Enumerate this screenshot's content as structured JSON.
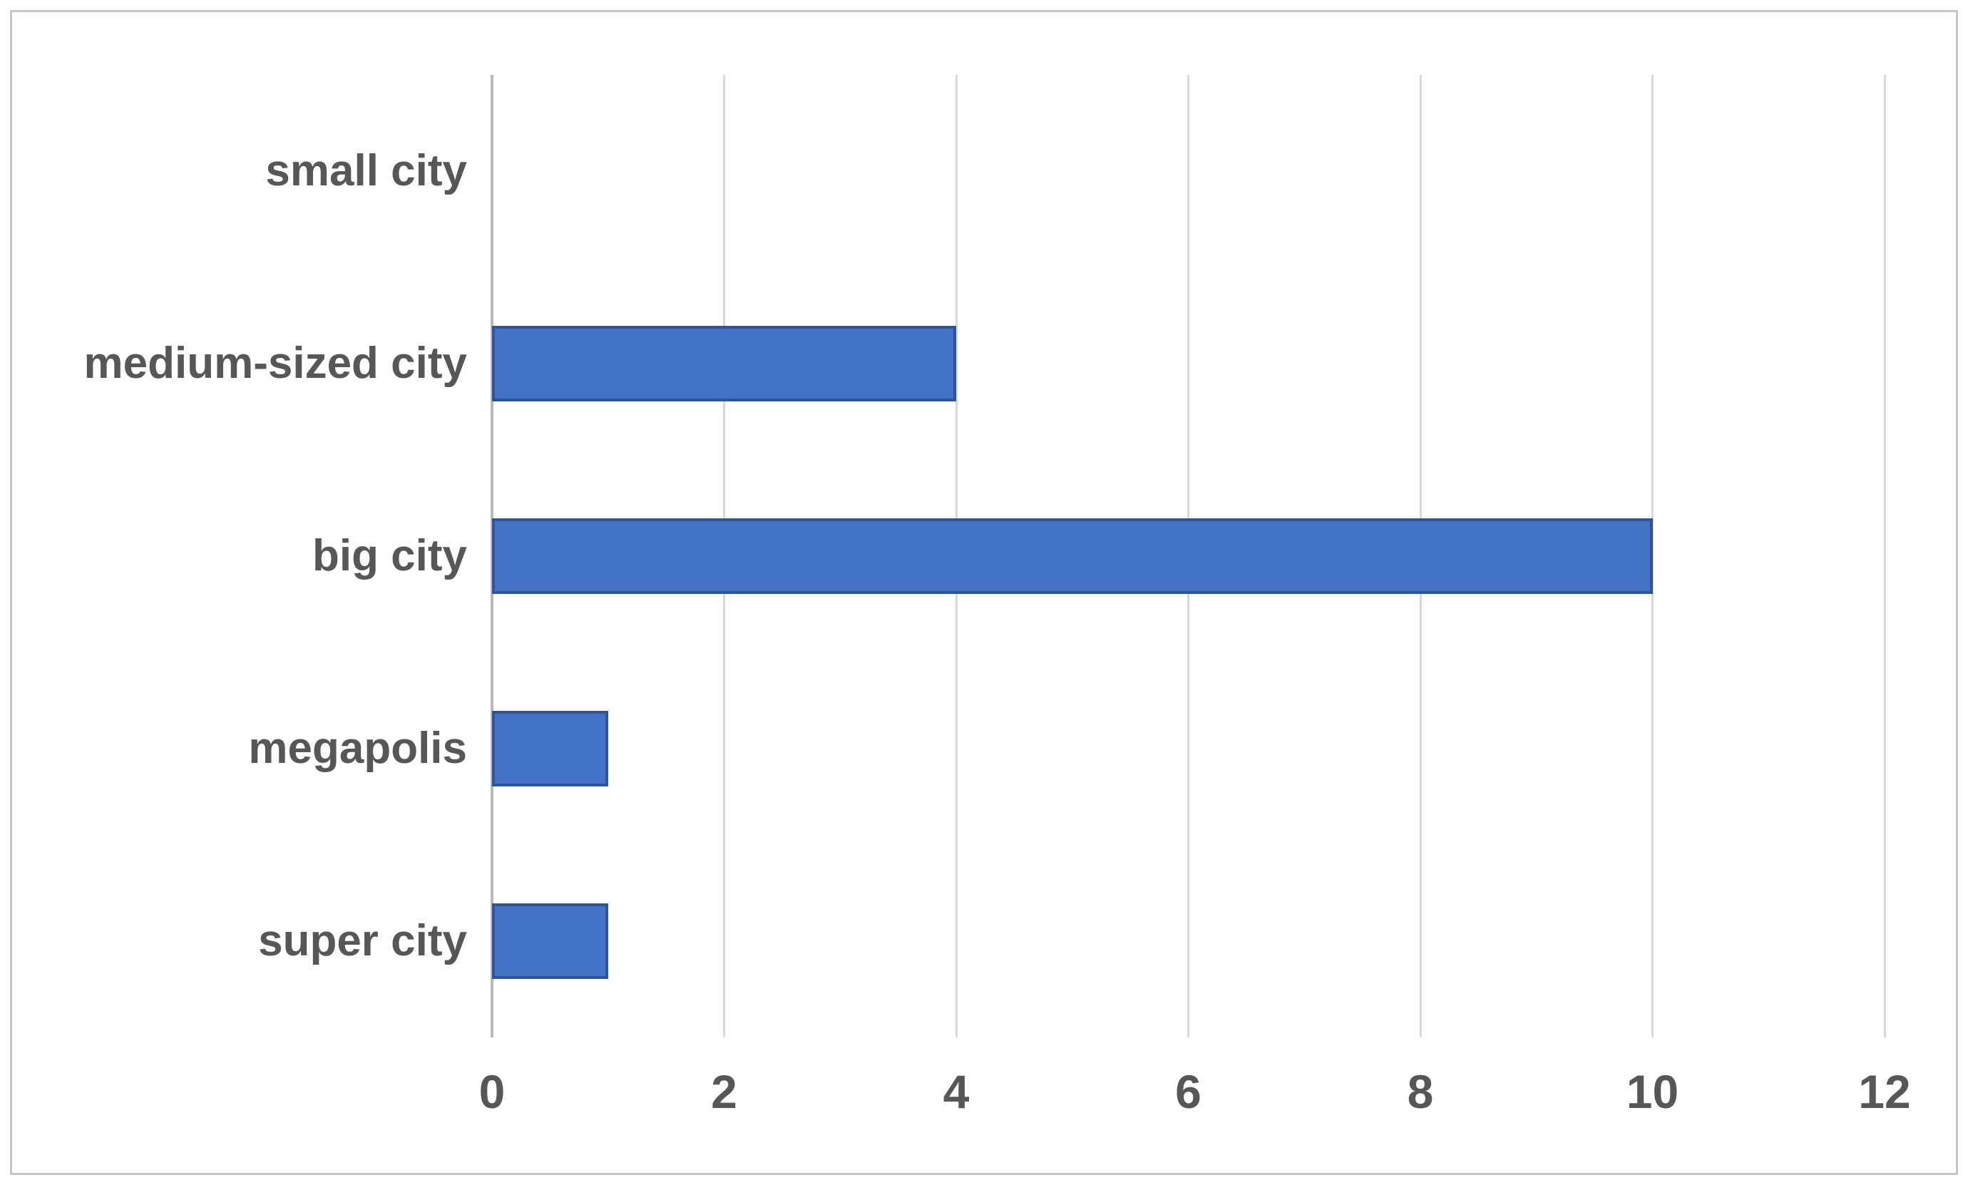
{
  "chart_data": {
    "type": "bar",
    "orientation": "horizontal",
    "title": "",
    "xlabel": "",
    "ylabel": "",
    "categories": [
      "small city",
      "medium-sized city",
      "big city",
      "megapolis",
      "super city"
    ],
    "values": [
      0,
      4,
      10,
      1,
      1
    ],
    "x_ticks": [
      0,
      2,
      4,
      6,
      8,
      10,
      12
    ],
    "xlim": [
      0,
      12
    ],
    "grid": true,
    "legend": false,
    "colors": {
      "bar_fill": "#4472C4",
      "bar_border": "#2F5597",
      "gridline": "#D8D8D8",
      "axis_line": "#B9B9B9",
      "label_text": "#575757",
      "frame_border": "#C6C6C6",
      "background": "#FFFFFF"
    }
  }
}
